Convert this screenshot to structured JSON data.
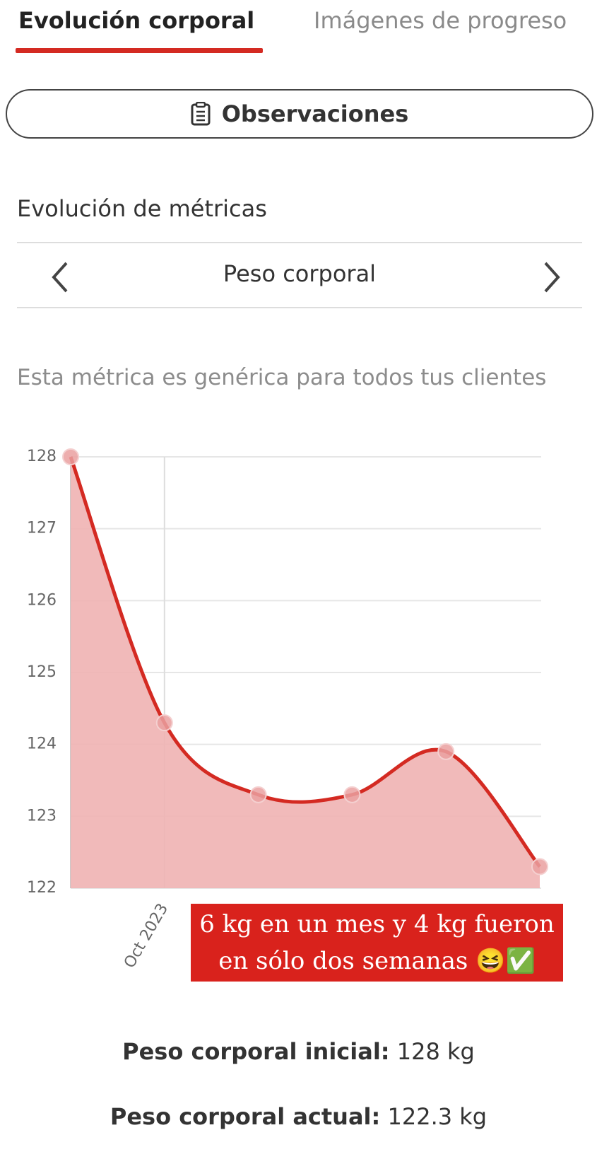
{
  "tabs": {
    "active": "Evolución corporal",
    "inactive": "Imágenes de progreso"
  },
  "button": "Observaciones",
  "section_title": "Evolución de métricas",
  "metric_selector": "Peso corporal",
  "note": "Esta métrica es genérica para todos tus clientes",
  "chart_data": {
    "type": "area",
    "categories": [
      null,
      "Oct 2023",
      null,
      null,
      null,
      null
    ],
    "values": [
      128,
      124.3,
      123.3,
      123.3,
      123.9,
      122.3
    ],
    "color": "#d42a22",
    "fill_color": "#efb3b3",
    "point_color": "#eaa0a0",
    "ylim": [
      122,
      128
    ],
    "yticks": [
      122,
      123,
      124,
      125,
      126,
      127,
      128
    ],
    "grid": true
  },
  "caption": "6 kg en un mes y 4 kg fueron en sólo dos semanas 😆✅",
  "summary": [
    {
      "label": "Peso corporal inicial:",
      "value": "128 kg"
    },
    {
      "label": "Peso corporal actual:",
      "value": "122.3 kg"
    }
  ]
}
